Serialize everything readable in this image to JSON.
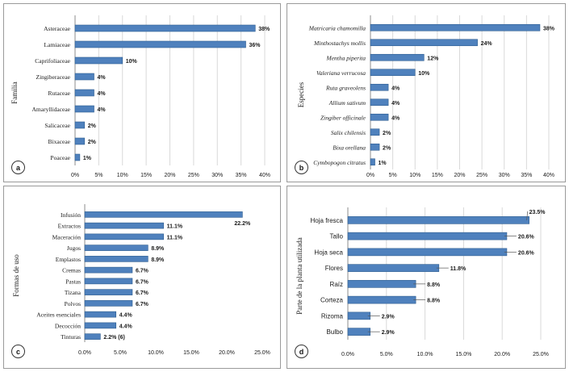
{
  "colors": {
    "bar": "#4f81bd",
    "bar_dark": "#2e5d8f",
    "grid": "#d9d9d9",
    "text": "#1a1a1a",
    "leader": "#555555"
  },
  "chart_data": [
    {
      "panel": "a",
      "type": "bar",
      "orientation": "horizontal",
      "ylabel": "Familia",
      "categories": [
        "Asteraceae",
        "Lamiaceae",
        "Caprifoliaceae",
        "Zingiberaceae",
        "Rutaceae",
        "Amaryllidaceae",
        "Salicaceae",
        "Bixaceae",
        "Poaceae"
      ],
      "values": [
        38,
        36,
        10,
        4,
        4,
        4,
        2,
        2,
        1
      ],
      "value_labels": [
        "38%",
        "36%",
        "10%",
        "4%",
        "4%",
        "4%",
        "2%",
        "2%",
        "1%"
      ],
      "xlim": [
        0,
        40
      ],
      "xticks": [
        "0%",
        "5%",
        "10%",
        "15%",
        "20%",
        "25%",
        "30%",
        "35%",
        "40%"
      ],
      "grid": true
    },
    {
      "panel": "b",
      "type": "bar",
      "orientation": "horizontal",
      "ylabel": "Especies",
      "categories": [
        "Matricaria chamomilla",
        "Minthostachys mollis",
        "Mentha piperita",
        "Valeriana verrucosa",
        "Ruta graveolens",
        "Allium sativum",
        "Zingiber officinale",
        "Salix chilensis",
        "Bixa orellana",
        "Cymbopogon citratus"
      ],
      "values": [
        38,
        24,
        12,
        10,
        4,
        4,
        4,
        2,
        2,
        1
      ],
      "value_labels": [
        "38%",
        "24%",
        "12%",
        "10%",
        "4%",
        "4%",
        "4%",
        "2%",
        "2%",
        "1%"
      ],
      "xlim": [
        0,
        40
      ],
      "xticks": [
        "0%",
        "5%",
        "10%",
        "15%",
        "20%",
        "25%",
        "30%",
        "35%",
        "40%"
      ],
      "grid": true
    },
    {
      "panel": "c",
      "type": "bar",
      "orientation": "horizontal",
      "ylabel": "Formas de uso",
      "categories": [
        "Infusión",
        "Extractos",
        "Maceración",
        "Jugos",
        "Emplastos",
        "Cremas",
        "Pastas",
        "Tizana",
        "Polvos",
        "Aceites esenciales",
        "Decocción",
        "Tinturas"
      ],
      "values": [
        22.2,
        11.1,
        11.1,
        8.9,
        8.9,
        6.7,
        6.7,
        6.7,
        6.7,
        4.4,
        4.4,
        2.2
      ],
      "value_labels": [
        "22.2%",
        "11.1%",
        "11.1%",
        "8.9%",
        "8.9%",
        "6.7%",
        "6.7%",
        "6.7%",
        "6.7%",
        "4.4%",
        "4.4%",
        "2.2% (6)"
      ],
      "xlim": [
        0,
        25
      ],
      "xticks": [
        "0.0%",
        "5.0%",
        "10.0%",
        "15.0%",
        "20.0%",
        "25.0%"
      ],
      "grid": false
    },
    {
      "panel": "d",
      "type": "bar",
      "orientation": "horizontal",
      "ylabel": "Parte de la planta utilizada",
      "categories": [
        "Hoja fresca",
        "Tallo",
        "Hoja seca",
        "Flores",
        "Raíz",
        "Corteza",
        "Rizoma",
        "Bulbo"
      ],
      "values": [
        23.5,
        20.6,
        20.6,
        11.8,
        8.8,
        8.8,
        2.9,
        2.9
      ],
      "value_labels": [
        "23.5%",
        "20.6%",
        "20.6%",
        "11.8%",
        "8.8%",
        "8.8%",
        "2.9%",
        "2.9%"
      ],
      "xlim": [
        0,
        25
      ],
      "xticks": [
        "0.0%",
        "5.0%",
        "10.0%",
        "15.0%",
        "20.0%",
        "25.0%"
      ],
      "grid": true
    }
  ]
}
